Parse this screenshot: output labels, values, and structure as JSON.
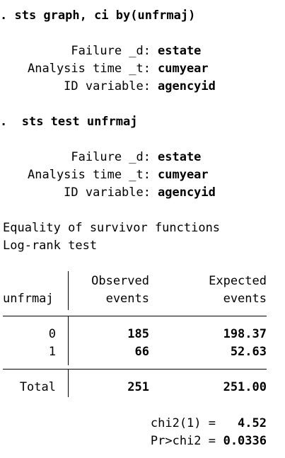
{
  "commands": [
    {
      "prompt": ". ",
      "text": "sts graph, ci by(unfrmaj)"
    },
    {
      "prompt": ".  ",
      "text": "sts test unfrmaj"
    }
  ],
  "settings_block_1": {
    "failure_label": "Failure _d:",
    "failure_value": "estate",
    "time_label": "Analysis time _t:",
    "time_value": "cumyear",
    "id_label": "ID variable:",
    "id_value": "agencyid"
  },
  "settings_block_2": {
    "failure_label": "Failure _d:",
    "failure_value": "estate",
    "time_label": "Analysis time _t:",
    "time_value": "cumyear",
    "id_label": "ID variable:",
    "id_value": "agencyid"
  },
  "test_title": "Equality of survivor functions",
  "test_subtitle": "Log-rank test",
  "table": {
    "row_var": "unfrmaj",
    "col_observed_line1": "Observed",
    "col_observed_line2": "events",
    "col_expected_line1": "Expected",
    "col_expected_line2": "events",
    "rows": [
      {
        "group": "0",
        "observed": "185",
        "expected": "198.37"
      },
      {
        "group": "1",
        "observed": "66",
        "expected": "52.63"
      }
    ],
    "total_label": "Total",
    "total_observed": "251",
    "total_expected": "251.00"
  },
  "stats": {
    "chi2_label": "chi2(1) =",
    "chi2_value": "4.52",
    "p_label": "Pr>chi2 =",
    "p_value": "0.0336"
  }
}
